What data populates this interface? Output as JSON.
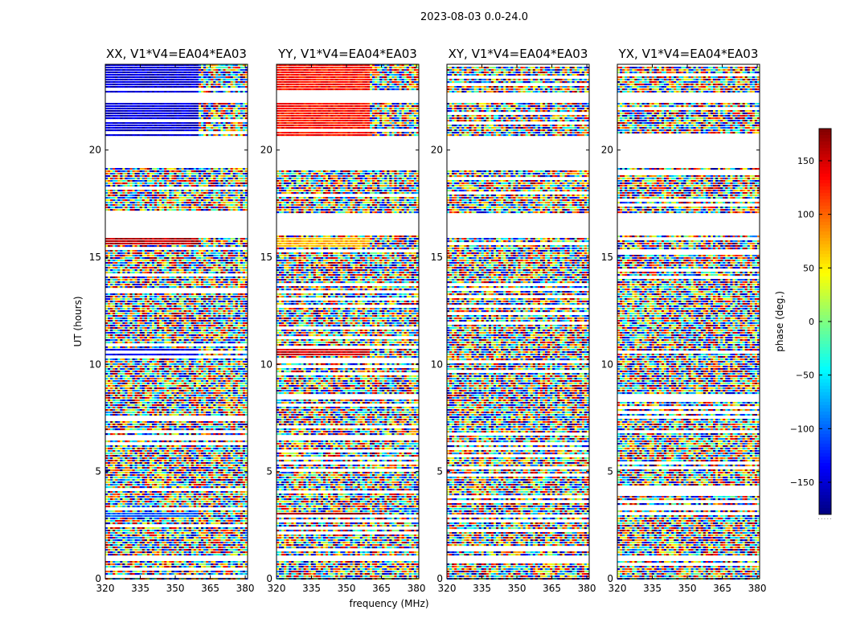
{
  "figure": {
    "suptitle": "2023-08-03 0.0-24.0",
    "ylabel": "UT (hours)",
    "xlabel": "frequency (MHz)",
    "colorbar_label": "phase (deg.)",
    "colorbar_footer": "· · · · ·"
  },
  "chart_data": {
    "type": "heatmap",
    "title": "2023-08-03 0.0-24.0",
    "xlabel": "frequency (MHz)",
    "ylabel": "UT (hours)",
    "xlim": [
      320,
      381
    ],
    "ylim": [
      0,
      24
    ],
    "xticks": [
      320,
      335,
      350,
      365,
      380
    ],
    "yticks": [
      0,
      5,
      10,
      15,
      20
    ],
    "colorbar": {
      "label": "phase (deg.)",
      "range": [
        -180,
        180
      ],
      "ticks": [
        150,
        100,
        50,
        0,
        -50,
        -100,
        -150
      ],
      "tick_labels": [
        "150",
        "100",
        "50",
        "0",
        "−50",
        "−100",
        "−150"
      ],
      "colormap": "jet"
    },
    "blank_time_ranges": [
      [
        0.8,
        1.0
      ],
      [
        16.0,
        17.0
      ],
      [
        19.2,
        20.6
      ],
      [
        22.2,
        22.6
      ]
    ],
    "panels": [
      {
        "title": "XX, V1*V4=EA04*EA03",
        "coherent_bands": [
          {
            "t0": 20.6,
            "t1": 24.0,
            "phase": -150
          },
          {
            "t0": 10.4,
            "t1": 10.7,
            "phase": -140
          },
          {
            "t0": 2.8,
            "t1": 3.1,
            "phase": -100
          },
          {
            "t0": 15.6,
            "t1": 15.9,
            "phase": 160
          }
        ]
      },
      {
        "title": "YY, V1*V4=EA04*EA03",
        "coherent_bands": [
          {
            "t0": 20.6,
            "t1": 24.0,
            "phase": 130
          },
          {
            "t0": 10.4,
            "t1": 10.7,
            "phase": 150
          },
          {
            "t0": 2.8,
            "t1": 3.1,
            "phase": 170
          },
          {
            "t0": 15.4,
            "t1": 15.9,
            "phase": 70
          }
        ]
      },
      {
        "title": "XY, V1*V4=EA04*EA03",
        "coherent_bands": []
      },
      {
        "title": "YX, V1*V4=EA04*EA03",
        "coherent_bands": []
      }
    ]
  }
}
